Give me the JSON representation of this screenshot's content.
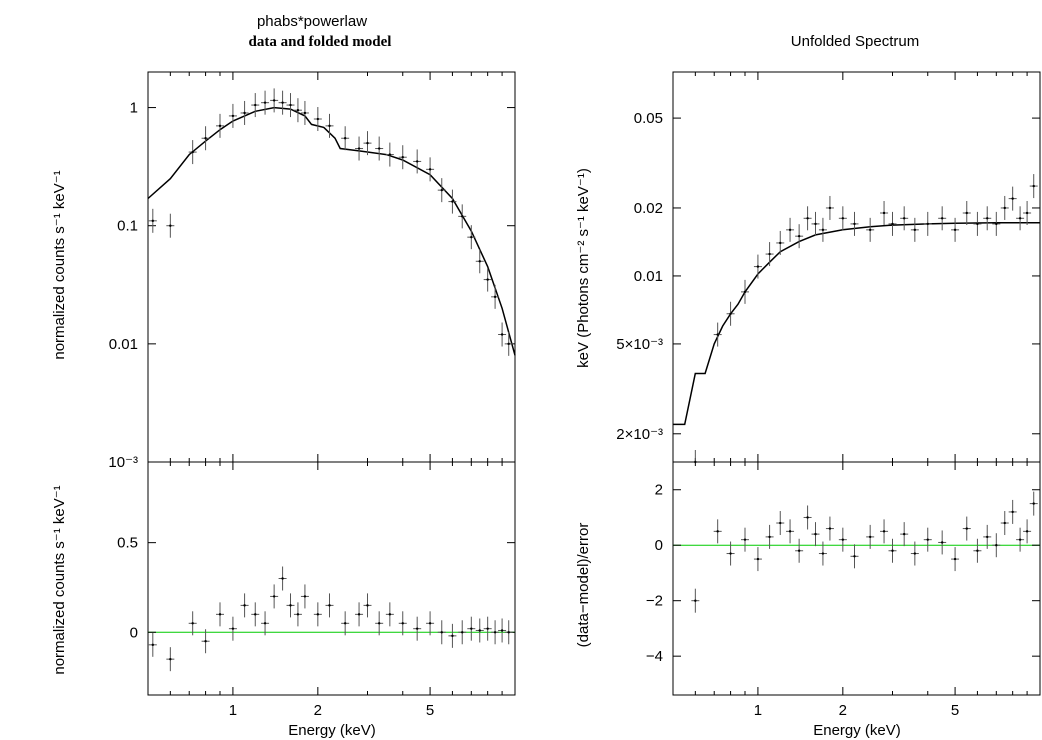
{
  "chart_data": [
    {
      "type": "scatter",
      "panel": "top-left",
      "title": "phabs*powerlaw",
      "subtitle": "data and folded model",
      "xlabel": "",
      "ylabel": "normalized counts s⁻¹ keV⁻¹",
      "x_scale": "log",
      "y_scale": "log",
      "xlim": [
        0.5,
        10
      ],
      "ylim": [
        0.001,
        2
      ],
      "y_ticks": [
        {
          "value": 1,
          "label": "1"
        },
        {
          "value": 0.1,
          "label": "0.1"
        },
        {
          "value": 0.01,
          "label": "0.01"
        },
        {
          "value": 0.001,
          "label": "10⁻³"
        }
      ],
      "x_ticks": [
        {
          "value": 1,
          "label": "1"
        },
        {
          "value": 2,
          "label": "2"
        },
        {
          "value": 5,
          "label": "5"
        }
      ],
      "model_line": {
        "x": [
          0.5,
          0.6,
          0.7,
          0.8,
          0.9,
          1.0,
          1.2,
          1.4,
          1.6,
          1.8,
          1.9,
          2.1,
          2.3,
          2.4,
          2.8,
          3.5,
          4.0,
          5.0,
          6.0,
          7.0,
          8.0,
          9.0,
          10.0
        ],
        "y": [
          0.17,
          0.25,
          0.4,
          0.52,
          0.65,
          0.77,
          0.93,
          1.0,
          0.97,
          0.85,
          0.72,
          0.68,
          0.55,
          0.45,
          0.43,
          0.4,
          0.36,
          0.27,
          0.17,
          0.09,
          0.045,
          0.02,
          0.008
        ]
      },
      "data_points": {
        "x": [
          0.52,
          0.6,
          0.72,
          0.8,
          0.9,
          1.0,
          1.1,
          1.2,
          1.3,
          1.4,
          1.5,
          1.6,
          1.7,
          1.8,
          2.0,
          2.2,
          2.5,
          2.8,
          3.0,
          3.3,
          3.6,
          4.0,
          4.5,
          5.0,
          5.5,
          6.0,
          6.5,
          7.0,
          7.5,
          8.0,
          8.5,
          9.0,
          9.5
        ],
        "y": [
          0.11,
          0.1,
          0.42,
          0.55,
          0.7,
          0.85,
          0.9,
          1.05,
          1.1,
          1.15,
          1.1,
          1.05,
          0.95,
          0.9,
          0.8,
          0.7,
          0.55,
          0.45,
          0.5,
          0.45,
          0.4,
          0.38,
          0.35,
          0.3,
          0.2,
          0.16,
          0.12,
          0.08,
          0.05,
          0.035,
          0.025,
          0.012,
          0.01
        ]
      }
    },
    {
      "type": "scatter",
      "panel": "bottom-left",
      "xlabel": "Energy (keV)",
      "ylabel": "normalized counts s⁻¹ keV⁻¹",
      "x_scale": "log",
      "y_scale": "linear",
      "xlim": [
        0.5,
        10
      ],
      "ylim": [
        -0.35,
        0.95
      ],
      "y_ticks": [
        {
          "value": 0.5,
          "label": "0.5"
        },
        {
          "value": 0,
          "label": "0"
        }
      ],
      "x_ticks": [
        {
          "value": 1,
          "label": "1"
        },
        {
          "value": 2,
          "label": "2"
        },
        {
          "value": 5,
          "label": "5"
        }
      ],
      "zero_line": 0,
      "data_points": {
        "x": [
          0.52,
          0.6,
          0.72,
          0.8,
          0.9,
          1.0,
          1.1,
          1.2,
          1.3,
          1.4,
          1.5,
          1.6,
          1.7,
          1.8,
          2.0,
          2.2,
          2.5,
          2.8,
          3.0,
          3.3,
          3.6,
          4.0,
          4.5,
          5.0,
          5.5,
          6.0,
          6.5,
          7.0,
          7.5,
          8.0,
          8.5,
          9.0,
          9.5
        ],
        "y": [
          -0.07,
          -0.15,
          0.05,
          -0.05,
          0.1,
          0.02,
          0.15,
          0.1,
          0.05,
          0.2,
          0.3,
          0.15,
          0.1,
          0.2,
          0.1,
          0.15,
          0.05,
          0.1,
          0.15,
          0.05,
          0.1,
          0.05,
          0.02,
          0.05,
          0.0,
          -0.02,
          0.0,
          0.02,
          0.01,
          0.02,
          0.0,
          0.01,
          0.0
        ]
      }
    },
    {
      "type": "scatter",
      "panel": "top-right",
      "title": "Unfolded Spectrum",
      "xlabel": "",
      "ylabel": "keV (Photons cm⁻² s⁻¹ keV⁻¹)",
      "x_scale": "log",
      "y_scale": "log",
      "xlim": [
        0.5,
        10
      ],
      "ylim": [
        0.0015,
        0.08
      ],
      "y_ticks": [
        {
          "value": 0.05,
          "label": "0.05"
        },
        {
          "value": 0.02,
          "label": "0.02"
        },
        {
          "value": 0.01,
          "label": "0.01"
        },
        {
          "value": 0.005,
          "label": "5×10⁻³"
        },
        {
          "value": 0.002,
          "label": "2×10⁻³"
        }
      ],
      "x_ticks": [
        {
          "value": 1,
          "label": "1"
        },
        {
          "value": 2,
          "label": "2"
        },
        {
          "value": 5,
          "label": "5"
        }
      ],
      "model_line": {
        "x": [
          0.5,
          0.55,
          0.6,
          0.65,
          0.7,
          0.75,
          0.8,
          0.85,
          0.9,
          1.0,
          1.1,
          1.2,
          1.4,
          1.6,
          2.0,
          2.5,
          3.0,
          4.0,
          5.0,
          7.0,
          10.0
        ],
        "y": [
          0.0022,
          0.0022,
          0.0037,
          0.0037,
          0.005,
          0.006,
          0.0068,
          0.0075,
          0.0085,
          0.0102,
          0.0115,
          0.0128,
          0.0142,
          0.0152,
          0.016,
          0.0165,
          0.0168,
          0.017,
          0.0171,
          0.0172,
          0.0172
        ]
      },
      "data_points": {
        "x": [
          0.6,
          0.72,
          0.8,
          0.9,
          1.0,
          1.1,
          1.2,
          1.3,
          1.4,
          1.5,
          1.6,
          1.7,
          1.8,
          2.0,
          2.2,
          2.5,
          2.8,
          3.0,
          3.3,
          3.6,
          4.0,
          4.5,
          5.0,
          5.5,
          6.0,
          6.5,
          7.0,
          7.5,
          8.0,
          8.5,
          9.0,
          9.5
        ],
        "y": [
          0.0015,
          0.0055,
          0.0068,
          0.0085,
          0.011,
          0.0125,
          0.014,
          0.016,
          0.015,
          0.018,
          0.017,
          0.016,
          0.02,
          0.018,
          0.017,
          0.016,
          0.019,
          0.017,
          0.018,
          0.016,
          0.017,
          0.018,
          0.016,
          0.019,
          0.017,
          0.018,
          0.017,
          0.02,
          0.022,
          0.018,
          0.019,
          0.025
        ]
      }
    },
    {
      "type": "scatter",
      "panel": "bottom-right",
      "xlabel": "Energy (keV)",
      "ylabel": "(data−model)/error",
      "x_scale": "log",
      "y_scale": "linear",
      "xlim": [
        0.5,
        10
      ],
      "ylim": [
        -5.4,
        3
      ],
      "y_ticks": [
        {
          "value": 2,
          "label": "2"
        },
        {
          "value": 0,
          "label": "0"
        },
        {
          "value": -2,
          "label": "−2"
        },
        {
          "value": -4,
          "label": "−4"
        }
      ],
      "x_ticks": [
        {
          "value": 1,
          "label": "1"
        },
        {
          "value": 2,
          "label": "2"
        },
        {
          "value": 5,
          "label": "5"
        }
      ],
      "zero_line": 0,
      "data_points": {
        "x": [
          0.6,
          0.72,
          0.8,
          0.9,
          1.0,
          1.1,
          1.2,
          1.3,
          1.4,
          1.5,
          1.6,
          1.7,
          1.8,
          2.0,
          2.2,
          2.5,
          2.8,
          3.0,
          3.3,
          3.6,
          4.0,
          4.5,
          5.0,
          5.5,
          6.0,
          6.5,
          7.0,
          7.5,
          8.0,
          8.5,
          9.0,
          9.5
        ],
        "y": [
          -2.0,
          0.5,
          -0.3,
          0.2,
          -0.5,
          0.3,
          0.8,
          0.5,
          -0.2,
          1.0,
          0.4,
          -0.3,
          0.6,
          0.2,
          -0.4,
          0.3,
          0.5,
          -0.2,
          0.4,
          -0.3,
          0.2,
          0.1,
          -0.5,
          0.6,
          -0.2,
          0.3,
          0.0,
          0.8,
          1.2,
          0.2,
          0.5,
          1.5
        ]
      }
    }
  ],
  "colors": {
    "axes": "#000000",
    "data": "#555555",
    "model": "#000000",
    "zero_line": "#00cc00"
  }
}
